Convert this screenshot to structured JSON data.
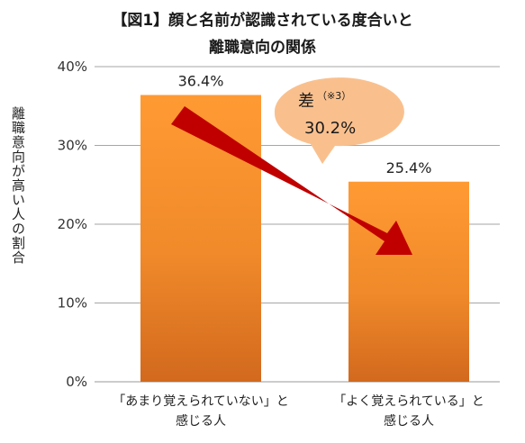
{
  "chart_data": {
    "type": "bar",
    "title": [
      "【図1】顔と名前が認識されている度合いと",
      "離職意向の関係"
    ],
    "ylabel": "離職意向が高い人の割合",
    "xlabel": "",
    "categories": [
      [
        "「あまり覚えられていない」と",
        "感じる人"
      ],
      [
        "「よく覚えられている」と",
        "感じる人"
      ]
    ],
    "values": [
      36.4,
      25.4
    ],
    "value_labels": [
      "36.4%",
      "25.4%"
    ],
    "ylim": [
      0,
      40
    ],
    "yticks": [
      0,
      10,
      20,
      30,
      40
    ],
    "ytick_labels": [
      "0%",
      "10%",
      "20%",
      "30%",
      "40%"
    ],
    "grid": true,
    "colors": {
      "bar_top": "#FF9A33",
      "bar_bottom": "#D2691E",
      "arrow": "#C00000",
      "callout": "#F9C08E"
    },
    "annotation": {
      "label": "差",
      "note": "（※3）",
      "value": "30.2%"
    }
  }
}
